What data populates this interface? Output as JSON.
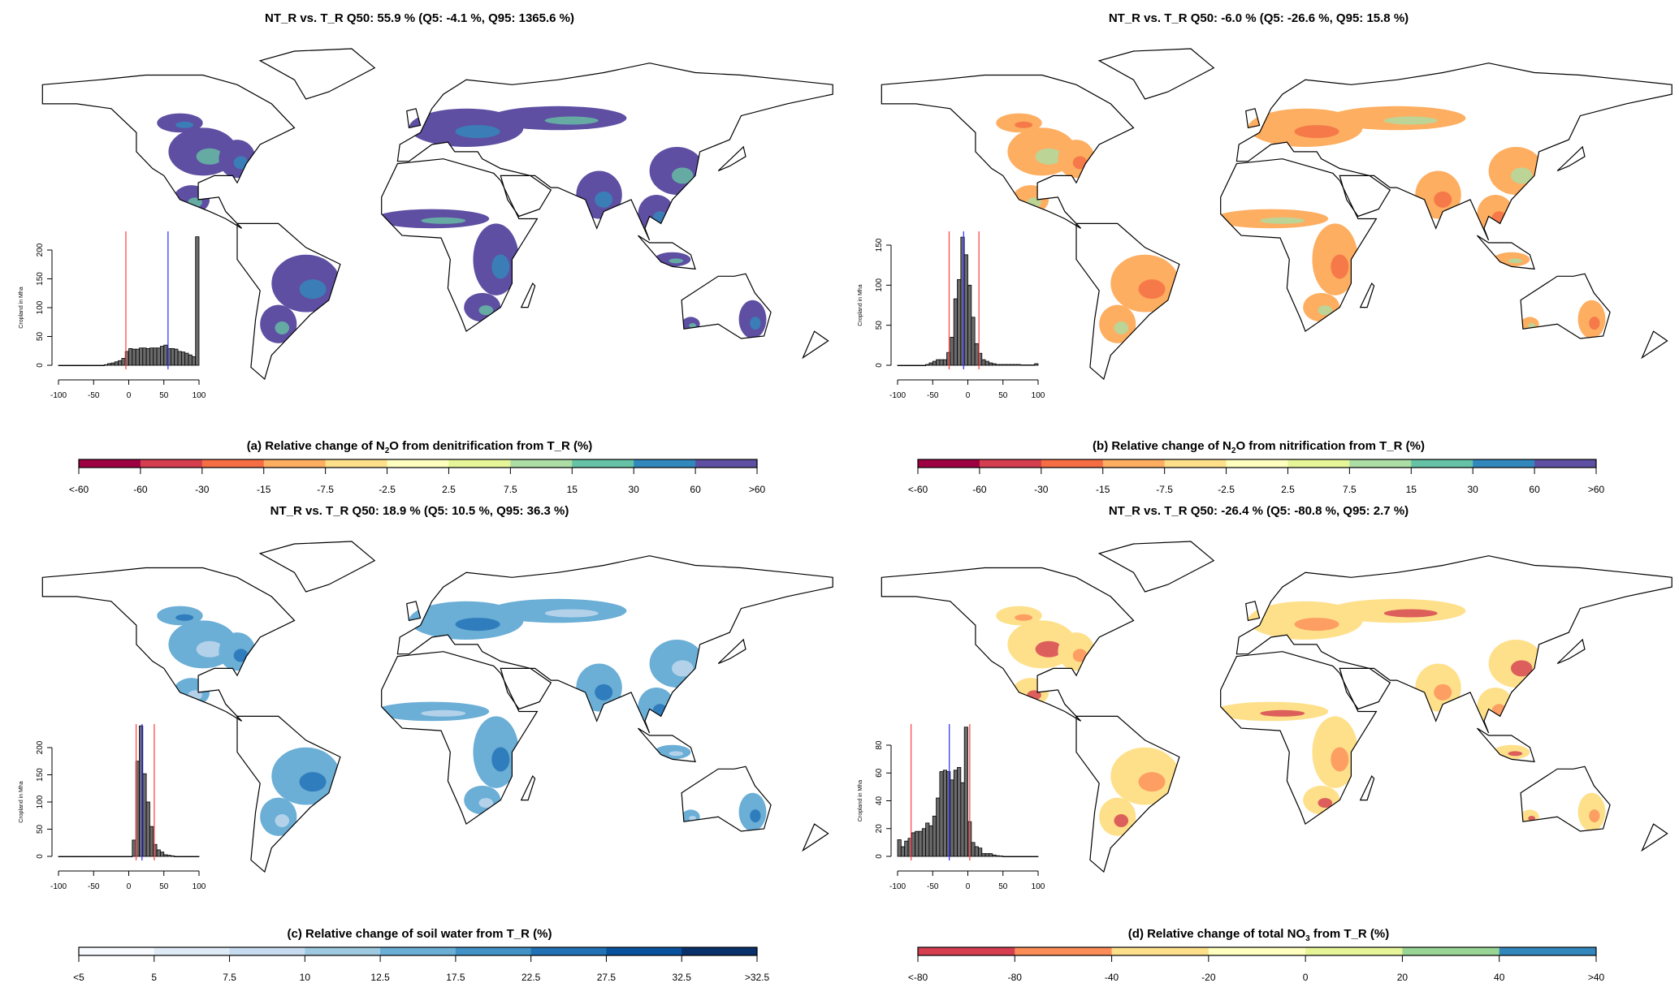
{
  "chart_data": [
    {
      "type": "histogram-map",
      "title": "NT_R vs. T_R Q50: 55.9 % (Q5: -4.1 %, Q95: 1365.6 %)",
      "colorbar_title": {
        "prefix": "(a) Relative change of N",
        "sub": "2",
        "suffix": "O from denitrification from T_R (%)"
      },
      "colorbar_labels": [
        "<-60",
        "-60",
        "-30",
        "-15",
        "-7.5",
        "-2.5",
        "2.5",
        "7.5",
        "15",
        "30",
        "60",
        ">60"
      ],
      "colorbar_colors": [
        "#9e0142",
        "#d53e4f",
        "#f46d43",
        "#fdae61",
        "#fee08b",
        "#ffffbf",
        "#e6f598",
        "#abdda4",
        "#66c2a5",
        "#3288bd",
        "#5e4fa2"
      ],
      "map_colors": {
        "primary": "#5e4fa2",
        "secondary": "#3288bd",
        "tertiary": "#66c2a5"
      },
      "histogram": {
        "ylabel": "Cropland in Mha",
        "xlim": [
          -100,
          100
        ],
        "xticks": [
          "-100",
          "-50",
          "0",
          "50",
          "100"
        ],
        "ylim": [
          0,
          200
        ],
        "yticks": [
          "0",
          "50",
          "100",
          "150",
          "200"
        ],
        "bin_width": 5,
        "bins_start": [
          -100,
          -95,
          -90,
          -85,
          -80,
          -75,
          -70,
          -65,
          -60,
          -55,
          -50,
          -45,
          -40,
          -35,
          -30,
          -25,
          -20,
          -15,
          -10,
          -5,
          0,
          5,
          10,
          15,
          20,
          25,
          30,
          35,
          40,
          45,
          50,
          55,
          60,
          65,
          70,
          75,
          80,
          85,
          90,
          95
        ],
        "values": [
          0,
          0,
          0,
          0,
          0,
          0,
          0,
          0,
          0,
          0,
          0,
          0,
          0,
          1,
          3,
          4,
          6,
          8,
          12,
          24,
          29,
          28,
          28,
          30,
          30,
          29,
          30,
          30,
          30,
          33,
          35,
          29,
          29,
          28,
          24,
          23,
          21,
          18,
          15,
          223
        ],
        "q5": -4.1,
        "q50": 55.9,
        "q95": 100
      }
    },
    {
      "type": "histogram-map",
      "title": "NT_R vs. T_R Q50: -6.0 % (Q5: -26.6 %, Q95: 15.8 %)",
      "colorbar_title": {
        "prefix": "(b) Relative change of N",
        "sub": "2",
        "suffix": "O from nitrification from T_R (%)"
      },
      "colorbar_labels": [
        "<-60",
        "-60",
        "-30",
        "-15",
        "-7.5",
        "-2.5",
        "2.5",
        "7.5",
        "15",
        "30",
        "60",
        ">60"
      ],
      "colorbar_colors": [
        "#9e0142",
        "#d53e4f",
        "#f46d43",
        "#fdae61",
        "#fee08b",
        "#ffffbf",
        "#e6f598",
        "#abdda4",
        "#66c2a5",
        "#3288bd",
        "#5e4fa2"
      ],
      "map_colors": {
        "primary": "#fdae61",
        "secondary": "#f46d43",
        "tertiary": "#abdda4"
      },
      "histogram": {
        "ylabel": "Cropland in Mha",
        "xlim": [
          -100,
          100
        ],
        "xticks": [
          "-100",
          "-50",
          "0",
          "50",
          "100"
        ],
        "ylim": [
          0,
          150
        ],
        "yticks": [
          "0",
          "50",
          "100",
          "150"
        ],
        "bin_width": 5,
        "bins_start": [
          -100,
          -95,
          -90,
          -85,
          -80,
          -75,
          -70,
          -65,
          -60,
          -55,
          -50,
          -45,
          -40,
          -35,
          -30,
          -25,
          -20,
          -15,
          -10,
          -5,
          0,
          5,
          10,
          15,
          20,
          25,
          30,
          35,
          40,
          45,
          50,
          55,
          60,
          65,
          70,
          75,
          80,
          85,
          90,
          95
        ],
        "values": [
          0,
          0,
          0,
          0,
          0,
          0,
          0,
          0,
          1,
          3,
          5,
          7,
          7,
          7,
          16,
          35,
          83,
          107,
          160,
          138,
          100,
          60,
          27,
          15,
          7,
          5,
          3,
          2,
          1,
          1,
          1,
          1,
          1,
          1,
          1,
          0.5,
          0.5,
          0.5,
          0.5,
          2
        ],
        "q5": -26.6,
        "q50": -6.0,
        "q95": 15.8
      }
    },
    {
      "type": "histogram-map",
      "title": "NT_R vs. T_R Q50: 18.9 % (Q5: 10.5 %, Q95: 36.3 %)",
      "colorbar_title": {
        "prefix": "(c) Relative change of soil water from T_R (%)",
        "sub": "",
        "suffix": ""
      },
      "colorbar_labels": [
        "<5",
        "5",
        "7.5",
        "10",
        "12.5",
        "17.5",
        "22.5",
        "27.5",
        "32.5",
        ">32.5"
      ],
      "colorbar_colors": [
        "#f7fbff",
        "#deebf7",
        "#c6dbef",
        "#9ecae1",
        "#6baed6",
        "#4292c6",
        "#2171b5",
        "#08519c",
        "#08306b"
      ],
      "map_colors": {
        "primary": "#6baed6",
        "secondary": "#2171b5",
        "tertiary": "#c6dbef"
      },
      "histogram": {
        "ylabel": "Cropland in Mha",
        "xlim": [
          -100,
          100
        ],
        "xticks": [
          "-100",
          "-50",
          "0",
          "50",
          "100"
        ],
        "ylim": [
          0,
          200
        ],
        "yticks": [
          "0",
          "50",
          "100",
          "150",
          "200"
        ],
        "bin_width": 5,
        "bins_start": [
          -100,
          -95,
          -90,
          -85,
          -80,
          -75,
          -70,
          -65,
          -60,
          -55,
          -50,
          -45,
          -40,
          -35,
          -30,
          -25,
          -20,
          -15,
          -10,
          -5,
          0,
          5,
          10,
          15,
          20,
          25,
          30,
          35,
          40,
          45,
          50,
          55,
          60,
          65,
          70,
          75,
          80,
          85,
          90,
          95
        ],
        "values": [
          0,
          0,
          0,
          0,
          0,
          0,
          0,
          0,
          0,
          0,
          0,
          0,
          0,
          0,
          0,
          0,
          0,
          0,
          0,
          0,
          0,
          30,
          175,
          240,
          152,
          100,
          55,
          22,
          12,
          8,
          3,
          2,
          1,
          0,
          0,
          0,
          0,
          0,
          0,
          0
        ],
        "q5": 10.5,
        "q50": 18.9,
        "q95": 36.3
      }
    },
    {
      "type": "histogram-map",
      "title": "NT_R vs. T_R Q50: -26.4 % (Q5: -80.8 %, Q95: 2.7 %)",
      "colorbar_title": {
        "prefix": "(d) Relative change of total NO",
        "sub": "3",
        "suffix": " from T_R (%)"
      },
      "colorbar_labels": [
        "<-80",
        "-80",
        "-40",
        "-20",
        "0",
        "20",
        "40",
        ">40"
      ],
      "colorbar_colors": [
        "#d53e4f",
        "#fc8d59",
        "#fee08b",
        "#ffffbf",
        "#e6f598",
        "#99d594",
        "#3288bd"
      ],
      "map_colors": {
        "primary": "#fee08b",
        "secondary": "#fc8d59",
        "tertiary": "#d53e4f"
      },
      "histogram": {
        "ylabel": "Cropland in Mha",
        "xlim": [
          -100,
          100
        ],
        "xticks": [
          "-100",
          "-50",
          "0",
          "50",
          "100"
        ],
        "ylim": [
          0,
          80
        ],
        "yticks": [
          "0",
          "20",
          "40",
          "60",
          "80"
        ],
        "bin_width": 5,
        "bins_start": [
          -100,
          -95,
          -90,
          -85,
          -80,
          -75,
          -70,
          -65,
          -60,
          -55,
          -50,
          -45,
          -40,
          -35,
          -30,
          -25,
          -20,
          -15,
          -10,
          -5,
          0,
          5,
          10,
          15,
          20,
          25,
          30,
          35,
          40,
          45,
          50,
          55,
          60,
          65,
          70,
          75,
          80,
          85,
          90,
          95
        ],
        "values": [
          12,
          7,
          11,
          13,
          17,
          18,
          18,
          20,
          24,
          22,
          29,
          42,
          61,
          62,
          61,
          55,
          62,
          64,
          53,
          93,
          25,
          10,
          7,
          6,
          2,
          2,
          2,
          1,
          0.5,
          0.3,
          0,
          0,
          0,
          0,
          0,
          0,
          0,
          0,
          0,
          0
        ],
        "q5": -80.8,
        "q50": -26.4,
        "q95": 2.7
      }
    }
  ]
}
